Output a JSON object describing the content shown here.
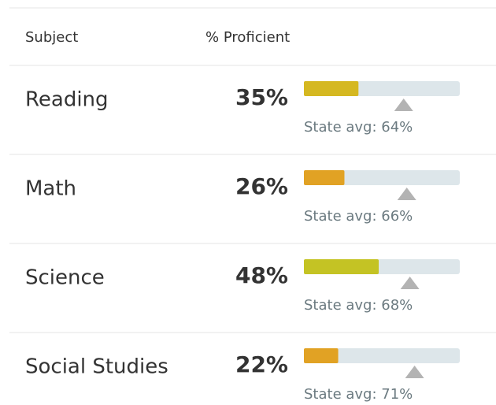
{
  "header": {
    "subject": "Subject",
    "proficient": "% Proficient"
  },
  "xlim": [
    0,
    100
  ],
  "rows": [
    {
      "subject": "Reading",
      "value": 35,
      "value_label": "35%",
      "state_avg": 64,
      "state_avg_label": "State avg: 64%",
      "color": "#d5b821"
    },
    {
      "subject": "Math",
      "value": 26,
      "value_label": "26%",
      "state_avg": 66,
      "state_avg_label": "State avg: 66%",
      "color": "#e1a224"
    },
    {
      "subject": "Science",
      "value": 48,
      "value_label": "48%",
      "state_avg": 68,
      "state_avg_label": "State avg: 68%",
      "color": "#c4c324"
    },
    {
      "subject": "Social Studies",
      "value": 22,
      "value_label": "22%",
      "state_avg": 71,
      "state_avg_label": "State avg: 71%",
      "color": "#e1a224"
    }
  ]
}
